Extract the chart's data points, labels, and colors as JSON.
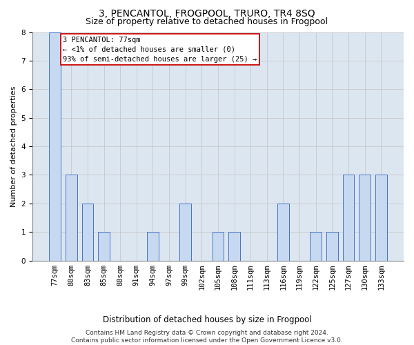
{
  "title": "3, PENCANTOL, FROGPOOL, TRURO, TR4 8SQ",
  "subtitle": "Size of property relative to detached houses in Frogpool",
  "xlabel": "Distribution of detached houses by size in Frogpool",
  "ylabel": "Number of detached properties",
  "categories": [
    "77sqm",
    "80sqm",
    "83sqm",
    "85sqm",
    "88sqm",
    "91sqm",
    "94sqm",
    "97sqm",
    "99sqm",
    "102sqm",
    "105sqm",
    "108sqm",
    "111sqm",
    "113sqm",
    "116sqm",
    "119sqm",
    "122sqm",
    "125sqm",
    "127sqm",
    "130sqm",
    "133sqm"
  ],
  "values": [
    8,
    3,
    2,
    1,
    0,
    0,
    1,
    0,
    2,
    0,
    1,
    1,
    0,
    0,
    2,
    0,
    1,
    1,
    3,
    3,
    3
  ],
  "bar_color": "#c6d9f1",
  "bar_edge_color": "#4472c4",
  "bar_width": 0.7,
  "ylim": [
    0,
    8
  ],
  "yticks": [
    0,
    1,
    2,
    3,
    4,
    5,
    6,
    7,
    8
  ],
  "annotation_text": "3 PENCANTOL: 77sqm\n← <1% of detached houses are smaller (0)\n93% of semi-detached houses are larger (25) →",
  "annotation_box_facecolor": "#ffffff",
  "annotation_border_color": "#cc0000",
  "grid_color": "#c8c8c8",
  "plot_bg_color": "#dce6f1",
  "fig_bg_color": "#ffffff",
  "title_fontsize": 10,
  "subtitle_fontsize": 9,
  "xlabel_fontsize": 8.5,
  "ylabel_fontsize": 8,
  "tick_fontsize": 7.5,
  "annotation_fontsize": 7.5,
  "footer_fontsize": 6.5,
  "footer_line1": "Contains HM Land Registry data © Crown copyright and database right 2024.",
  "footer_line2": "Contains public sector information licensed under the Open Government Licence v3.0."
}
